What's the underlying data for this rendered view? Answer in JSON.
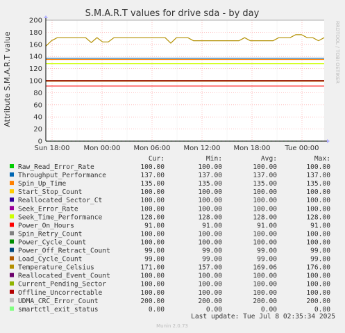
{
  "chart_data": {
    "type": "line",
    "title": "S.M.A.R.T values for drive sda - by day",
    "ylabel": "Attribute S.M.A.R.T value",
    "ylim": [
      0,
      200
    ],
    "y_ticks": [
      "0",
      "20",
      "40",
      "60",
      "80",
      "100",
      "120",
      "140",
      "160",
      "180",
      "200"
    ],
    "x_ticks": [
      "Sun 18:00",
      "Mon 00:00",
      "Mon 06:00",
      "Mon 12:00",
      "Mon 18:00",
      "Tue 00:00"
    ],
    "grid": true,
    "side_label": "RRDTOOL / TOBI OETIKER",
    "column_headers": [
      "Cur:",
      "Min:",
      "Avg:",
      "Max:"
    ],
    "series": [
      {
        "name": "Raw_Read_Error_Rate",
        "color": "#00cc00",
        "cur": "100.00",
        "min": "100.00",
        "avg": "100.00",
        "max": "100.00",
        "values": [
          100,
          100
        ]
      },
      {
        "name": "Throughput_Performance",
        "color": "#0066b3",
        "cur": "137.00",
        "min": "137.00",
        "avg": "137.00",
        "max": "137.00",
        "values": [
          137,
          137
        ]
      },
      {
        "name": "Spin_Up_Time",
        "color": "#ff8000",
        "cur": "135.00",
        "min": "135.00",
        "avg": "135.00",
        "max": "135.00",
        "values": [
          135,
          135
        ]
      },
      {
        "name": "Start_Stop_Count",
        "color": "#ffcc00",
        "cur": "100.00",
        "min": "100.00",
        "avg": "100.00",
        "max": "100.00",
        "values": [
          100,
          100
        ]
      },
      {
        "name": "Reallocated_Sector_Ct",
        "color": "#330099",
        "cur": "100.00",
        "min": "100.00",
        "avg": "100.00",
        "max": "100.00",
        "values": [
          100,
          100
        ]
      },
      {
        "name": "Seek_Error_Rate",
        "color": "#990099",
        "cur": "100.00",
        "min": "100.00",
        "avg": "100.00",
        "max": "100.00",
        "values": [
          100,
          100
        ]
      },
      {
        "name": "Seek_Time_Performance",
        "color": "#ccff00",
        "cur": "128.00",
        "min": "128.00",
        "avg": "128.00",
        "max": "128.00",
        "values": [
          128,
          128
        ]
      },
      {
        "name": "Power_On_Hours",
        "color": "#ff0000",
        "cur": "91.00",
        "min": "91.00",
        "avg": "91.00",
        "max": "91.00",
        "values": [
          91,
          91
        ]
      },
      {
        "name": "Spin_Retry_Count",
        "color": "#808080",
        "cur": "100.00",
        "min": "100.00",
        "avg": "100.00",
        "max": "100.00",
        "values": [
          100,
          100
        ]
      },
      {
        "name": "Power_Cycle_Count",
        "color": "#008f00",
        "cur": "100.00",
        "min": "100.00",
        "avg": "100.00",
        "max": "100.00",
        "values": [
          100,
          100
        ]
      },
      {
        "name": "Power_Off_Retract_Count",
        "color": "#00487d",
        "cur": "99.00",
        "min": "99.00",
        "avg": "99.00",
        "max": "99.00",
        "values": [
          99,
          99
        ]
      },
      {
        "name": "Load_Cycle_Count",
        "color": "#b35a00",
        "cur": "99.00",
        "min": "99.00",
        "avg": "99.00",
        "max": "99.00",
        "values": [
          99,
          99
        ]
      },
      {
        "name": "Temperature_Celsius",
        "color": "#b38f00",
        "cur": "171.00",
        "min": "157.00",
        "avg": "169.06",
        "max": "176.00",
        "values": [
          157,
          166,
          171,
          171,
          171,
          171,
          171,
          171,
          163,
          171,
          164,
          164,
          171,
          171,
          171,
          171,
          171,
          171,
          171,
          171,
          171,
          171,
          162,
          171,
          171,
          171,
          166,
          166,
          166,
          166,
          166,
          166,
          166,
          166,
          166,
          171,
          166,
          166,
          166,
          166,
          166,
          171,
          171,
          171,
          176,
          176,
          171,
          171,
          166,
          171
        ]
      },
      {
        "name": "Reallocated_Event_Count",
        "color": "#6b006b",
        "cur": "100.00",
        "min": "100.00",
        "avg": "100.00",
        "max": "100.00",
        "values": [
          100,
          100
        ]
      },
      {
        "name": "Current_Pending_Sector",
        "color": "#8fb300",
        "cur": "100.00",
        "min": "100.00",
        "avg": "100.00",
        "max": "100.00",
        "values": [
          100,
          100
        ]
      },
      {
        "name": "Offline_Uncorrectable",
        "color": "#b30000",
        "cur": "100.00",
        "min": "100.00",
        "avg": "100.00",
        "max": "100.00",
        "values": [
          100,
          100
        ]
      },
      {
        "name": "UDMA_CRC_Error_Count",
        "color": "#bebebe",
        "cur": "200.00",
        "min": "200.00",
        "avg": "200.00",
        "max": "200.00",
        "values": [
          200,
          200
        ]
      },
      {
        "name": "smartctl_exit_status",
        "color": "#80ff80",
        "cur": "0.00",
        "min": "0.00",
        "avg": "0.00",
        "max": "0.00",
        "values": [
          0,
          0
        ]
      }
    ],
    "last_update": "Last update: Tue Jul  8 02:35:34 2025",
    "brand": "Munin 2.0.73"
  }
}
